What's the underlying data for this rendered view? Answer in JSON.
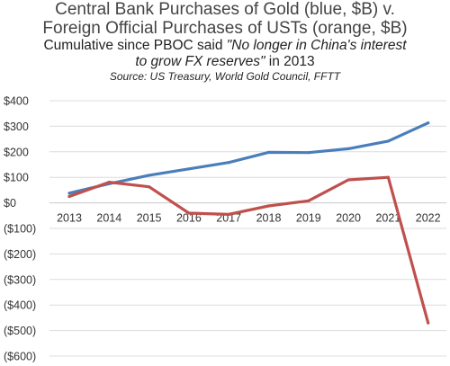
{
  "header": {
    "title_line1": "Central Bank Purchases of Gold (blue, $B) v.",
    "title_line2": "Foreign Official Purchases of USTs (orange, $B)",
    "subtitle_prefix": "Cumulative since PBOC said ",
    "subtitle_quote_a": "\"No longer in China's interest",
    "subtitle_quote_b": "to grow FX reserves\"",
    "subtitle_suffix": " in 2013",
    "source": "Source: US Treasury, World Gold Council, FFTT"
  },
  "chart_data": {
    "type": "line",
    "title": "Central Bank Purchases of Gold (blue, $B) v. Foreign Official Purchases of USTs (orange, $B)",
    "subtitle": "Cumulative since PBOC said \"No longer in China's interest to grow FX reserves\" in 2013",
    "source": "Source: US Treasury, World Gold Council, FFTT",
    "x": [
      "2013",
      "2014",
      "2015",
      "2016",
      "2017",
      "2018",
      "2019",
      "2020",
      "2021",
      "2022"
    ],
    "ylim": [
      -600,
      400
    ],
    "yticks": [
      400,
      300,
      200,
      100,
      0,
      -100,
      -200,
      -300,
      -400,
      -500,
      -600
    ],
    "ytick_labels": [
      "$400",
      "$300",
      "$200",
      "$100",
      "$0",
      "($100)",
      "($200)",
      "($300)",
      "($400)",
      "($500)",
      "($600)"
    ],
    "grid": true,
    "legend": "none",
    "series": [
      {
        "values": [
          38,
          75,
          108,
          133,
          158,
          198,
          197,
          212,
          242,
          313
        ],
        "color": "#4a7ebb"
      },
      {
        "values": [
          25,
          81,
          63,
          -40,
          -45,
          -12,
          8,
          90,
          100,
          -470
        ],
        "color": "#c0504d"
      }
    ]
  }
}
